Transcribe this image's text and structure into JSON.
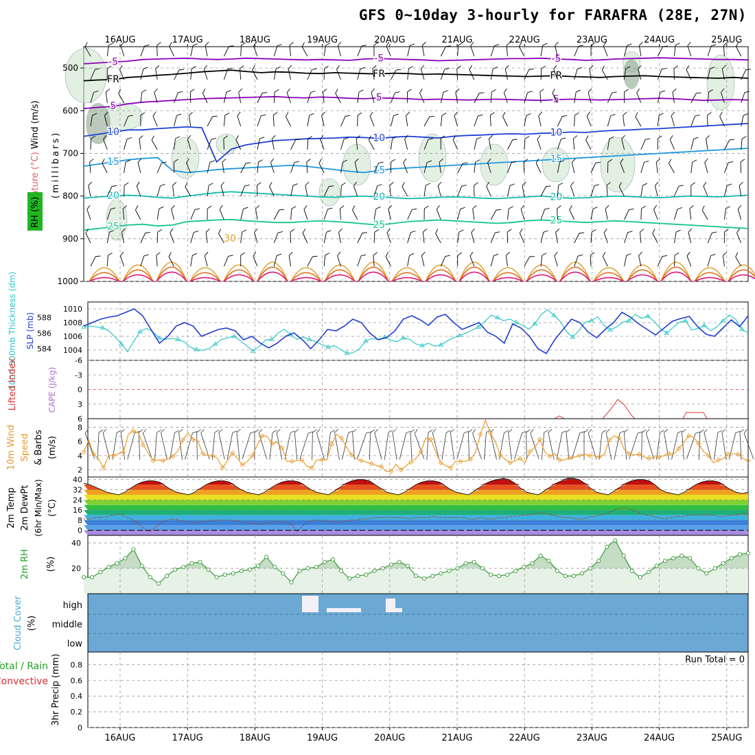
{
  "title": "GFS 0~10day 3-hourly for FARAFRA (28E, 27N)",
  "dates": [
    "16AUG",
    "17AUG",
    "18AUG",
    "19AUG",
    "20AUG",
    "21AUG",
    "22AUG",
    "23AUG",
    "24AUG",
    "25AUG"
  ],
  "panels": {
    "upper": {
      "ylabel": "(millibars)",
      "side_labels": [
        "Wind (m/s)",
        "Temperature (°C)",
        "RH (%)"
      ],
      "yticks": [
        500,
        600,
        700,
        800,
        900,
        1000
      ],
      "isotherms": [
        {
          "label": "-5",
          "color": "#8a00b8",
          "p": [
            490,
            488,
            486,
            484,
            480,
            479,
            478,
            477,
            479,
            480,
            479,
            477,
            478,
            479,
            480,
            481,
            480,
            481,
            482,
            479,
            478,
            479,
            480,
            481,
            483,
            482,
            481,
            480,
            479,
            478,
            478,
            477,
            479,
            480,
            482,
            481,
            479,
            478,
            477,
            476,
            477,
            478,
            479,
            480,
            480,
            481
          ]
        },
        {
          "label": "FR",
          "color": "#000000",
          "p": [
            530,
            528,
            527,
            522,
            520,
            517,
            515,
            512,
            509,
            507,
            505,
            508,
            511,
            509,
            510,
            512,
            513,
            511,
            512,
            513,
            514,
            512,
            513,
            515,
            514,
            515,
            516,
            517,
            518,
            519,
            520,
            519,
            518,
            520,
            521,
            522,
            520,
            519,
            518,
            520,
            521,
            522,
            523,
            524,
            522,
            524
          ]
        },
        {
          "label": "5",
          "color": "#8a00b8",
          "p": [
            595,
            592,
            590,
            584,
            580,
            578,
            576,
            574,
            572,
            571,
            570,
            569,
            568,
            567,
            569,
            570,
            568,
            569,
            571,
            572,
            570,
            571,
            572,
            574,
            573,
            574,
            575,
            574,
            573,
            574,
            575,
            576,
            574,
            573,
            574,
            575,
            574,
            573,
            572,
            571,
            572,
            574,
            576,
            575,
            574,
            575
          ]
        },
        {
          "label": "10",
          "color": "#1c3fd6",
          "p": [
            660,
            655,
            650,
            645,
            645,
            642,
            640,
            638,
            640,
            720,
            690,
            680,
            675,
            670,
            668,
            666,
            665,
            664,
            662,
            663,
            665,
            662,
            660,
            662,
            664,
            660,
            658,
            657,
            655,
            654,
            655,
            653,
            652,
            650,
            651,
            648,
            646,
            645,
            643,
            642,
            640,
            638,
            636,
            634,
            632,
            630
          ]
        },
        {
          "label": "15",
          "color": "#1b98e0",
          "p": [
            730,
            725,
            720,
            715,
            712,
            710,
            740,
            745,
            742,
            738,
            736,
            734,
            732,
            730,
            728,
            730,
            734,
            738,
            742,
            745,
            740,
            736,
            734,
            732,
            730,
            728,
            726,
            724,
            722,
            720,
            718,
            716,
            714,
            712,
            710,
            708,
            706,
            704,
            702,
            700,
            698,
            696,
            694,
            692,
            690,
            688
          ]
        },
        {
          "label": "20",
          "color": "#12b8b0",
          "p": [
            805,
            802,
            800,
            798,
            800,
            803,
            805,
            800,
            796,
            792,
            790,
            792,
            794,
            796,
            798,
            800,
            802,
            803,
            801,
            800,
            802,
            804,
            806,
            805,
            803,
            802,
            803,
            805,
            806,
            804,
            802,
            800,
            803,
            805,
            804,
            802,
            800,
            801,
            803,
            804,
            802,
            800,
            801,
            802,
            800,
            798
          ]
        },
        {
          "label": "25",
          "color": "#14c48c",
          "p": [
            880,
            876,
            872,
            868,
            866,
            870,
            868,
            860,
            858,
            856,
            855,
            858,
            860,
            862,
            862,
            860,
            858,
            860,
            862,
            865,
            868,
            864,
            860,
            858,
            856,
            858,
            860,
            862,
            864,
            862,
            858,
            856,
            858,
            860,
            862,
            860,
            858,
            860,
            862,
            864,
            866,
            868,
            870,
            872,
            874,
            876
          ]
        }
      ]
    },
    "slp": {
      "label_thk": "1000-500mb Thickness (dm)",
      "label_slp": "SLP (mb)",
      "left_ticks": [
        584,
        586,
        588
      ],
      "right_ticks": [
        1004,
        1006,
        1008,
        1010
      ],
      "slp_color": "#1f3ccf",
      "thk_color": "#2ec6c6",
      "slp": [
        1007.5,
        1008,
        1008.5,
        1008.8,
        1009,
        1009.5,
        1010,
        1009,
        1007,
        1005,
        1006,
        1007.5,
        1008,
        1007.5,
        1006,
        1006.5,
        1007,
        1007.2,
        1006.8,
        1005.5,
        1006,
        1005,
        1004.3,
        1005,
        1006,
        1006.5,
        1005.5,
        1004.2,
        1005.5,
        1007,
        1006.8,
        1007.5,
        1008.5,
        1008,
        1006.5,
        1005.5,
        1005.8,
        1006.8,
        1008.5,
        1009,
        1008.4,
        1007.6,
        1008.8,
        1009.2,
        1008,
        1007,
        1007.5,
        1008,
        1006.6,
        1006,
        1005,
        1007.8,
        1007.2,
        1006,
        1004.2,
        1003.5,
        1005.5,
        1007,
        1008.5,
        1008,
        1006.6,
        1005.8,
        1007,
        1008,
        1009.5,
        1008.8,
        1007.8,
        1007,
        1006.2,
        1007.2,
        1008.2,
        1008.6,
        1008.9,
        1007.4,
        1006.3,
        1006,
        1007.2,
        1008.4,
        1007.4,
        1009
      ],
      "thk": [
        586.8,
        586.9,
        586.8,
        586.7,
        586.3,
        585.5,
        584.6,
        583.6,
        585,
        586.2,
        586.6,
        586.2,
        585.4,
        585.2,
        585.3,
        585.2,
        584.9,
        584.2,
        583.9,
        583.8,
        584.0,
        584.6,
        585.2,
        585.4,
        585.6,
        585,
        584.4,
        583.7,
        584.3,
        585.1,
        585.2,
        586,
        586.5,
        585.8,
        585.2,
        585.5,
        585.2,
        584.9,
        584.5,
        584.2,
        584.4,
        583.9,
        583.4,
        583.5,
        584.0,
        585.0,
        585.3,
        585.2,
        585.5,
        585.1,
        584.9,
        585.4,
        585.2,
        584.6,
        584.4,
        584.7,
        584.3,
        584.5,
        585.0,
        585.4,
        585.7,
        586.0,
        586.4,
        586.8,
        587.5,
        588.3,
        588.0,
        587.6,
        587.8,
        587.4,
        587.0,
        586.5,
        587.2,
        588.4,
        589.0,
        588.3,
        587.5,
        586.2,
        585.5,
        586.3,
        587.4,
        587.6,
        588.1,
        587.0,
        586.4,
        586.8,
        587.4,
        587.6,
        588.4,
        587.9,
        588.2,
        587.5,
        586.6,
        586.0,
        586.7,
        587.4,
        587.6,
        586.4,
        586.6,
        587.0,
        586.3,
        586.8,
        587.6,
        588.3,
        587.8,
        586.5,
        586.0
      ]
    },
    "cape": {
      "label_li": "Lifted Index",
      "label_cape": "CAPE (J/kg)",
      "yticks": [
        -6,
        -3,
        0,
        3,
        6
      ],
      "li": [
        6,
        6,
        6,
        6,
        6,
        6,
        6,
        6,
        6,
        6,
        6,
        6,
        6,
        6,
        6,
        6,
        6,
        6,
        6,
        6,
        6,
        6,
        6,
        6,
        6,
        6,
        6,
        6,
        6,
        6,
        6,
        6,
        6,
        6,
        6,
        6,
        6,
        6,
        6,
        6,
        6,
        6,
        6,
        6,
        6,
        6,
        6,
        6,
        6,
        6,
        6,
        6,
        6,
        6,
        6,
        6,
        6,
        6,
        6,
        6,
        6,
        6,
        6,
        6,
        6,
        6,
        6,
        6,
        6,
        6,
        6,
        6,
        6,
        6,
        6,
        6,
        6,
        6,
        6,
        6,
        6,
        6,
        6,
        5.5,
        6,
        6,
        6,
        6,
        6,
        6,
        6,
        6,
        6,
        6,
        6,
        6,
        6,
        6,
        6,
        6,
        6,
        6,
        6,
        6,
        6,
        6,
        6,
        6,
        6,
        6,
        6,
        6,
        6,
        6,
        6,
        6,
        6,
        6,
        6,
        6,
        6,
        6,
        6,
        6,
        6,
        6,
        6,
        6,
        6,
        6,
        6,
        6,
        6,
        6,
        6,
        6,
        6,
        6,
        6,
        6,
        6,
        6,
        6,
        6,
        6,
        6,
        6,
        6,
        6,
        6,
        6,
        6,
        6,
        6,
        6,
        6,
        6,
        6,
        6,
        6,
        6,
        6,
        6,
        6,
        6,
        6,
        6,
        6,
        6,
        6,
        6,
        6,
        6,
        6,
        6,
        6,
        6,
        6,
        6,
        6,
        6,
        6,
        6,
        6,
        6,
        6,
        6,
        6,
        6,
        6,
        6
      ]
    },
    "wind10m": {
      "label_a": "10m Wind",
      "label_b": "Speed",
      "label_c": "& Barbs",
      "unit": "(m/s)",
      "yticks": [
        2,
        4,
        6,
        8
      ],
      "color": "#e89a2c",
      "speed": [
        4.5,
        6.2,
        4.2,
        3.5,
        2.3,
        4.0,
        4.0,
        4.3,
        4.5,
        7.0,
        7.5,
        7.2,
        5.5,
        4.4,
        3.3,
        3.4,
        3.3,
        3.6,
        3.9,
        4.7,
        6.2,
        7.2,
        6.3,
        6.1,
        4.3,
        4.0,
        4.0,
        3.6,
        2.3,
        3.3,
        4.4,
        3.6,
        2.7,
        3.2,
        4.0,
        5.5,
        6.8,
        6.7,
        5.7,
        5.9,
        5.1,
        3.2,
        3.2,
        3.3,
        3.4,
        2.5,
        2.3,
        3.4,
        3.4,
        3.4,
        5.6,
        7.0,
        6.5,
        5.2,
        4.1,
        3.6,
        3.3,
        3.1,
        2.9,
        2.6,
        2.5,
        1.8,
        1.8,
        2.8,
        2.0,
        2.6,
        3.1,
        3.6,
        4.6,
        6.5,
        6.3,
        4.5,
        3.0,
        2.6,
        2.3,
        3.2,
        3.2,
        3.2,
        3.5,
        4.4,
        7.0,
        9.0,
        7.2,
        6.0,
        4.1,
        3.5,
        3.0,
        3.3,
        3.6,
        3.0,
        4.6,
        5.2,
        6.3,
        4.5,
        3.9,
        4.3,
        3.4,
        3.4,
        3.7,
        3.8,
        4.0,
        4.2,
        4.0,
        4.0,
        3.8,
        4.2,
        6.2,
        6.8,
        6.5,
        4.9,
        4.3,
        4.1,
        4.2,
        3.8,
        3.6,
        3.8,
        3.8,
        4.0,
        4.3,
        4.2,
        5.0,
        5.8,
        6.8,
        6.6,
        5.7,
        4.6,
        4.0,
        3.0,
        3.4,
        3.6,
        4.2,
        4.3,
        4.2,
        3.6,
        3.3
      ]
    },
    "temp2m": {
      "label_a": "2m Temp",
      "label_b": "2m DewPt",
      "label_c": "(6hr Min/Max)",
      "unit": "(°C)",
      "yticks": [
        0,
        8,
        16,
        24,
        32,
        40
      ],
      "temp": [
        37,
        36,
        34,
        32,
        30,
        29,
        28,
        30,
        33,
        36,
        38,
        39,
        39,
        38,
        35,
        32,
        30,
        29,
        28,
        30,
        33,
        36,
        38,
        39,
        39,
        38,
        35,
        32,
        30,
        29,
        28,
        30,
        33,
        36,
        38,
        39,
        39,
        38,
        35,
        32,
        30,
        29,
        28,
        31,
        34,
        37,
        39,
        40,
        40,
        39,
        36,
        33,
        30,
        29,
        28,
        30,
        33,
        36,
        38,
        39,
        39,
        38,
        35,
        32,
        30,
        29,
        28,
        31,
        34,
        37,
        39,
        40,
        41,
        40,
        37,
        33,
        30,
        29,
        28,
        31,
        34,
        37,
        39,
        41,
        41,
        40,
        37,
        33,
        30,
        29,
        28,
        31,
        34,
        37,
        39,
        40,
        40,
        39,
        36,
        32,
        30,
        29,
        28,
        30,
        33,
        36,
        38,
        39,
        39,
        38,
        35,
        32,
        30,
        29,
        30
      ],
      "dew": [
        9,
        9,
        10,
        10,
        11,
        12,
        13,
        11,
        9,
        6,
        2,
        -1,
        2,
        6,
        8,
        9,
        8,
        7,
        6,
        6,
        7,
        7,
        8,
        8,
        8,
        8,
        7,
        6,
        6,
        5,
        5,
        6,
        6,
        7,
        6,
        5,
        -1,
        4,
        7,
        8,
        8,
        7,
        7,
        6,
        7,
        8,
        8,
        9,
        9,
        10,
        10,
        10,
        10,
        10,
        10,
        9,
        10,
        10,
        10,
        11,
        10,
        10,
        10,
        10,
        10,
        9,
        9,
        10,
        9,
        9,
        10,
        10,
        11,
        11,
        12,
        12,
        13,
        14,
        13,
        12,
        11,
        10,
        10,
        9,
        9,
        10,
        11,
        12,
        13,
        15,
        17,
        18,
        17,
        15,
        13,
        12,
        11,
        10,
        9,
        10,
        11,
        11,
        12,
        12,
        12,
        12,
        12,
        11,
        11,
        12,
        12,
        13,
        13
      ]
    },
    "rh2m": {
      "label": "2m RH",
      "unit": "(%)",
      "yticks": [
        20,
        40
      ],
      "color": "#3a9a3a",
      "rh": [
        13,
        13,
        17,
        21,
        24,
        28,
        35,
        22,
        13,
        8,
        14,
        19,
        21,
        24,
        25,
        19,
        13,
        15,
        16,
        18,
        19,
        22,
        29,
        21,
        16,
        9,
        18,
        20,
        21,
        25,
        27,
        18,
        12,
        14,
        15,
        18,
        20,
        23,
        25,
        22,
        14,
        12,
        14,
        16,
        18,
        20,
        24,
        25,
        20,
        15,
        14,
        15,
        18,
        21,
        24,
        30,
        26,
        18,
        14,
        14,
        16,
        20,
        26,
        37,
        42,
        30,
        18,
        13,
        17,
        22,
        26,
        28,
        30,
        28,
        20,
        16,
        20,
        24,
        28,
        31,
        32
      ]
    },
    "cloud": {
      "label": "Cloud Cover",
      "unit": "(%)",
      "levels": [
        "high",
        "middle",
        "low"
      ],
      "color": "#6ba8d4"
    },
    "precip": {
      "label_a": "Total / Rain",
      "label_b": "Convective",
      "label_c": "3hr Precip (mm)",
      "yticks": [
        "0",
        "0.2",
        "0.4",
        "0.6",
        "0.8"
      ],
      "run_total": "Run Total = 0"
    }
  }
}
